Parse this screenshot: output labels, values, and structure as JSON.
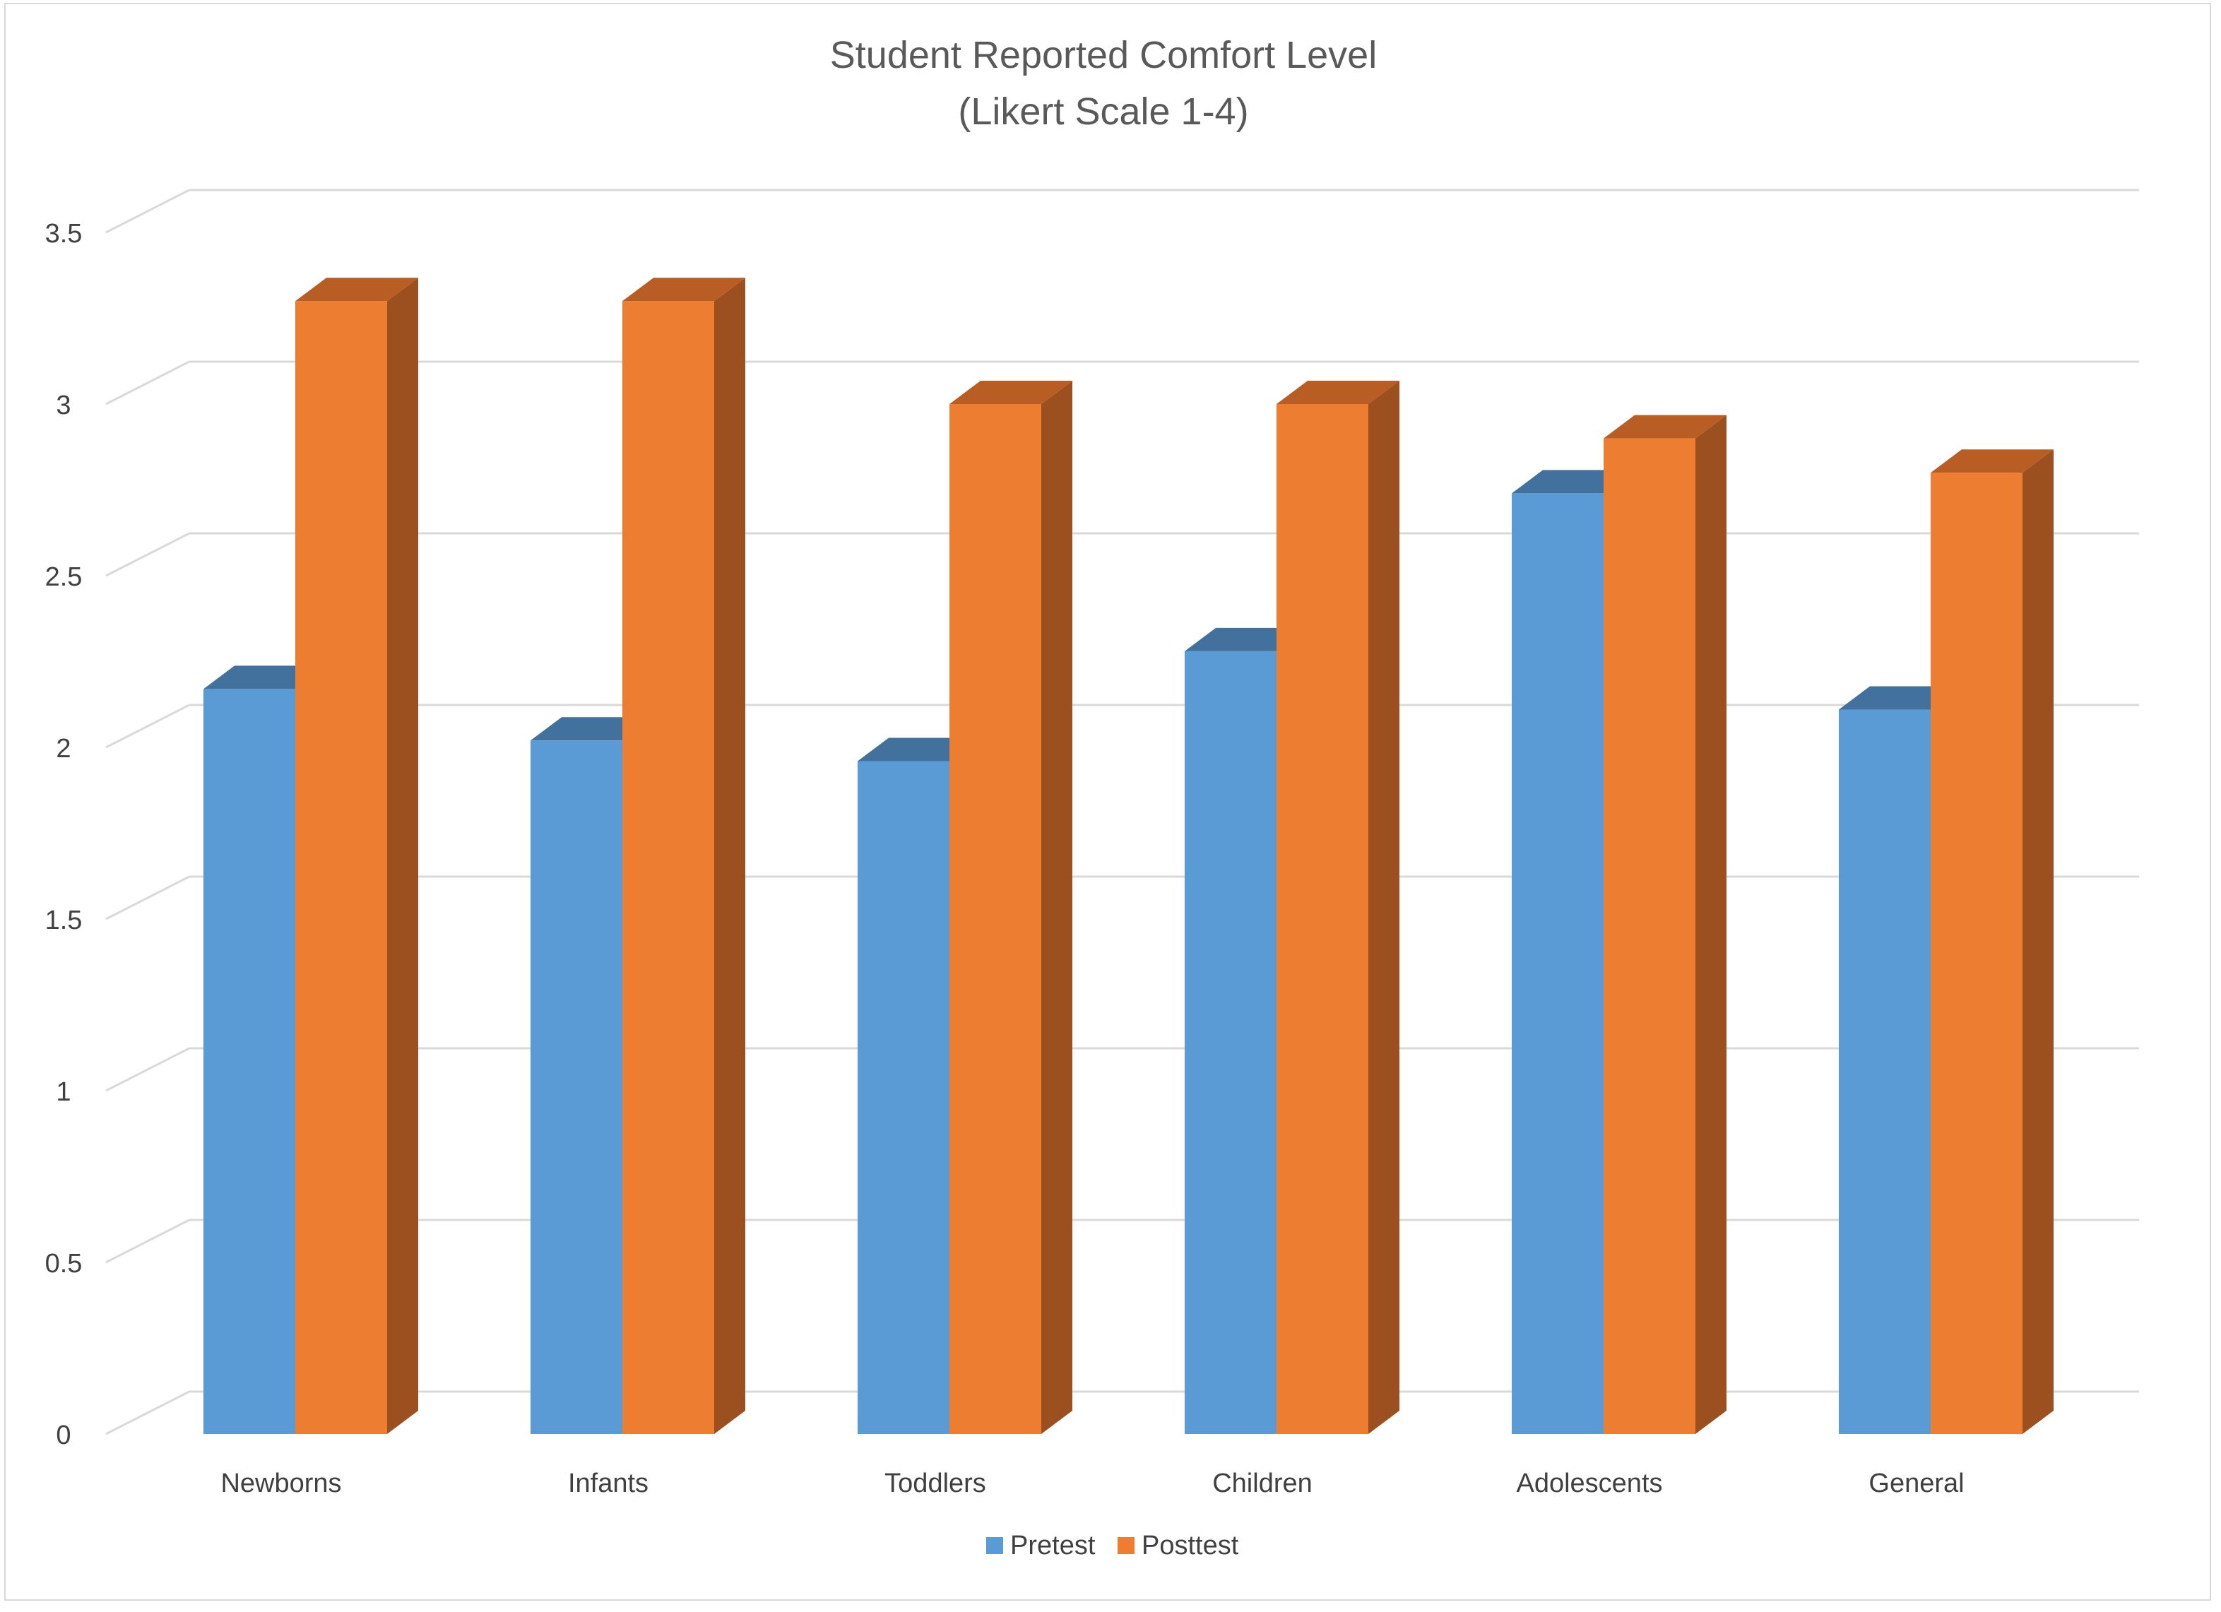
{
  "chart_data": {
    "type": "bar",
    "title": "Student Reported Comfort Level",
    "subtitle": "(Likert Scale 1-4)",
    "xlabel": "",
    "ylabel": "",
    "categories": [
      "Newborns",
      "Infants",
      "Toddlers",
      "Children",
      "Adolescents",
      "General"
    ],
    "series": [
      {
        "name": "Pretest",
        "values": [
          2.17,
          2.02,
          1.96,
          2.28,
          2.74,
          2.11
        ],
        "color": "#5b9bd5",
        "top_color": "#41719c"
      },
      {
        "name": "Posttest",
        "values": [
          3.3,
          3.3,
          3.0,
          3.0,
          2.9,
          2.8
        ],
        "color": "#ed7d31",
        "side_color": "#9c4f1f",
        "top_color": "#b85e24"
      }
    ],
    "ylim": [
      0,
      3.5
    ],
    "yticks": [
      "0",
      "0.5",
      "1",
      "1.5",
      "2",
      "2.5",
      "3",
      "3.5"
    ],
    "grid": true,
    "style": "3d-clustered-column",
    "legend": "bottom-center"
  }
}
